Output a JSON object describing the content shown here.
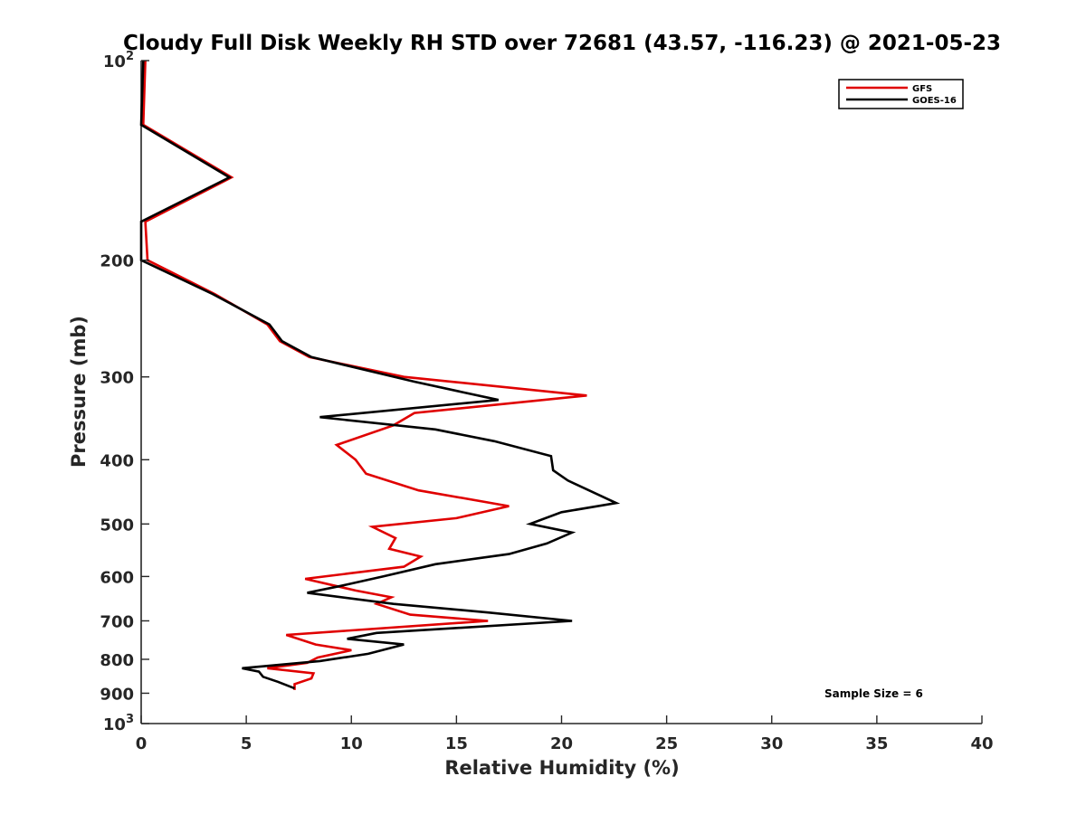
{
  "chart_data": {
    "type": "line",
    "title": "Cloudy Full Disk Weekly RH STD over 72681 (43.57, -116.23) @ 2021-05-23",
    "xlabel": "Relative Humidity (%)",
    "ylabel": "Pressure (mb)",
    "xlim": [
      0,
      40
    ],
    "ylim": [
      100,
      1000
    ],
    "y_scale": "log",
    "y_reversed": true,
    "grid": false,
    "legend_position": "top-right",
    "x_ticks": [
      "0",
      "5",
      "10",
      "15",
      "20",
      "25",
      "30",
      "35",
      "40"
    ],
    "y_ticks": [
      {
        "value": 100,
        "base": "10",
        "exp": "2"
      },
      {
        "value": 200,
        "label": "200"
      },
      {
        "value": 300,
        "label": "300"
      },
      {
        "value": 400,
        "label": "400"
      },
      {
        "value": 500,
        "label": "500"
      },
      {
        "value": 600,
        "label": "600"
      },
      {
        "value": 700,
        "label": "700"
      },
      {
        "value": 800,
        "label": "800"
      },
      {
        "value": 900,
        "label": "900"
      },
      {
        "value": 1000,
        "base": "10",
        "exp": "3"
      }
    ],
    "series": [
      {
        "name": "GFS",
        "color": "#e00000",
        "points": [
          [
            0.2,
            100
          ],
          [
            0.1,
            125
          ],
          [
            4.3,
            150
          ],
          [
            0.2,
            175
          ],
          [
            0.3,
            200
          ],
          [
            3.5,
            225
          ],
          [
            6.0,
            250
          ],
          [
            6.6,
            265
          ],
          [
            8.0,
            280
          ],
          [
            12.5,
            300
          ],
          [
            21.2,
            320
          ],
          [
            13.0,
            340
          ],
          [
            12.0,
            355
          ],
          [
            9.3,
            380
          ],
          [
            10.2,
            400
          ],
          [
            10.7,
            420
          ],
          [
            13.2,
            445
          ],
          [
            17.5,
            470
          ],
          [
            15.0,
            490
          ],
          [
            11.0,
            505
          ],
          [
            12.1,
            525
          ],
          [
            11.8,
            545
          ],
          [
            13.3,
            560
          ],
          [
            12.5,
            580
          ],
          [
            7.8,
            605
          ],
          [
            10.2,
            630
          ],
          [
            11.9,
            645
          ],
          [
            11.2,
            660
          ],
          [
            12.8,
            685
          ],
          [
            16.5,
            700
          ],
          [
            6.9,
            735
          ],
          [
            8.3,
            760
          ],
          [
            10.0,
            775
          ],
          [
            8.4,
            795
          ],
          [
            7.9,
            810
          ],
          [
            6.0,
            825
          ],
          [
            8.2,
            840
          ],
          [
            8.1,
            855
          ],
          [
            7.3,
            872
          ],
          [
            7.3,
            890
          ]
        ]
      },
      {
        "name": "GOES-16",
        "color": "#000000",
        "points": [
          [
            0.1,
            100
          ],
          [
            0.0,
            125
          ],
          [
            4.2,
            150
          ],
          [
            0.0,
            175
          ],
          [
            0.0,
            200
          ],
          [
            3.4,
            225
          ],
          [
            6.1,
            250
          ],
          [
            6.7,
            265
          ],
          [
            8.1,
            280
          ],
          [
            13.0,
            305
          ],
          [
            17.0,
            325
          ],
          [
            8.5,
            345
          ],
          [
            14.0,
            360
          ],
          [
            16.8,
            375
          ],
          [
            19.5,
            395
          ],
          [
            19.6,
            415
          ],
          [
            20.3,
            430
          ],
          [
            22.6,
            465
          ],
          [
            20.0,
            480
          ],
          [
            18.5,
            500
          ],
          [
            20.5,
            515
          ],
          [
            19.3,
            535
          ],
          [
            17.5,
            555
          ],
          [
            14.0,
            575
          ],
          [
            11.5,
            600
          ],
          [
            9.5,
            620
          ],
          [
            7.9,
            635
          ],
          [
            12.0,
            660
          ],
          [
            16.5,
            680
          ],
          [
            20.5,
            700
          ],
          [
            11.2,
            730
          ],
          [
            9.8,
            745
          ],
          [
            12.5,
            760
          ],
          [
            10.8,
            785
          ],
          [
            8.5,
            805
          ],
          [
            4.8,
            825
          ],
          [
            5.6,
            835
          ],
          [
            5.8,
            850
          ],
          [
            6.5,
            865
          ],
          [
            7.3,
            885
          ]
        ]
      }
    ],
    "annotation": "Sample Size = 6"
  }
}
